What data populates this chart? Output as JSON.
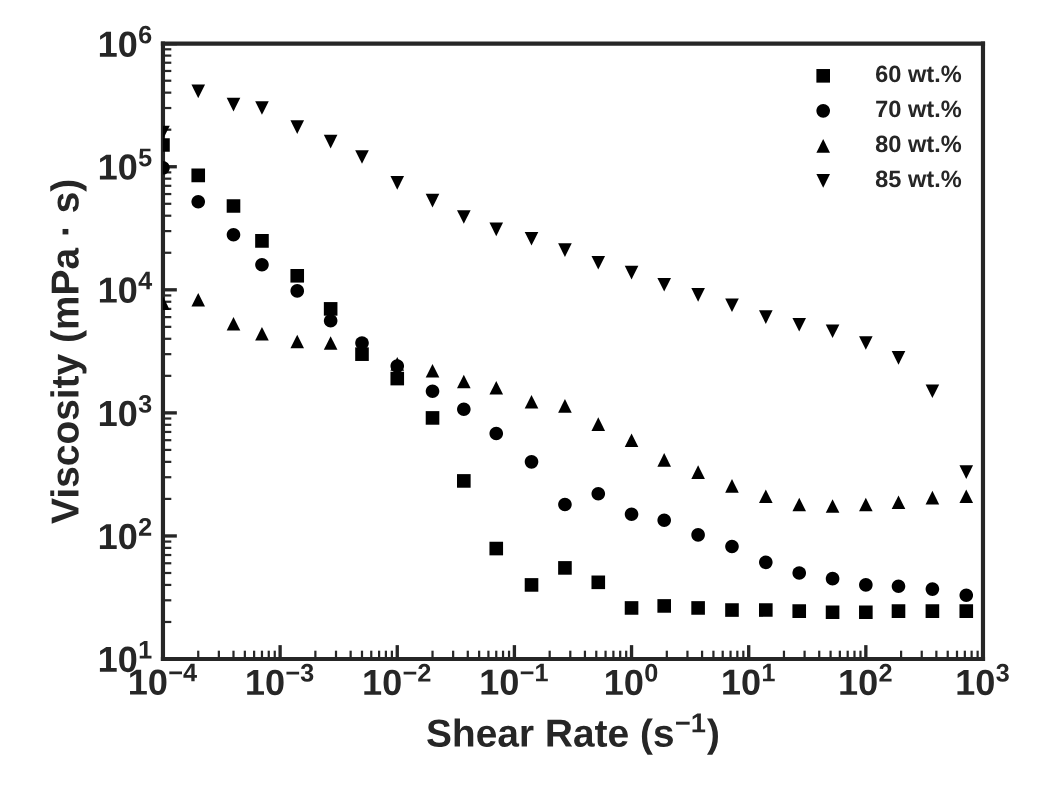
{
  "chart_data": {
    "type": "scatter",
    "xlabel": "Shear Rate (s$^{−1}$)",
    "ylabel": "Viscosity (mPa · s)",
    "x": [
      0.0001,
      0.0002,
      0.0004,
      0.0007,
      0.0014,
      0.0027,
      0.005,
      0.01,
      0.02,
      0.037,
      0.07,
      0.14,
      0.27,
      0.52,
      1,
      1.9,
      3.7,
      7.2,
      14,
      27,
      52,
      100,
      190,
      370,
      720
    ],
    "series": [
      {
        "name": "60 wt.%",
        "color": "#000000",
        "marker": "square",
        "values": [
          150000,
          85000,
          48000,
          25000,
          13000,
          7000,
          3000,
          1900,
          910,
          280,
          79,
          40,
          55,
          42,
          26,
          27,
          26,
          25,
          25,
          24.5,
          24,
          24,
          24.5,
          24.5,
          24.5
        ]
      },
      {
        "name": "70 wt.%",
        "color": "#000000",
        "marker": "circle",
        "values": [
          98000,
          52000,
          28000,
          16000,
          9800,
          5600,
          3700,
          2400,
          1500,
          1070,
          680,
          400,
          180,
          220,
          150,
          134,
          102,
          82,
          61,
          50,
          45,
          40,
          39,
          37,
          33
        ]
      },
      {
        "name": "80 wt.%",
        "color": "#000000",
        "marker": "triangle",
        "values": [
          7800,
          8300,
          5300,
          4400,
          3800,
          3700,
          null,
          2500,
          2200,
          1800,
          1600,
          1230,
          1140,
          810,
          600,
          415,
          330,
          255,
          210,
          180,
          175,
          180,
          188,
          205,
          210
        ]
      },
      {
        "name": "85 wt.%",
        "color": "#000000",
        "marker": "triangle_down",
        "values": [
          190000,
          410000,
          320000,
          300000,
          210000,
          160000,
          120000,
          74000,
          53000,
          39000,
          31000,
          26000,
          21000,
          16600,
          13800,
          11000,
          9100,
          7500,
          6000,
          5200,
          4600,
          3700,
          2800,
          1500,
          330
        ]
      }
    ],
    "log": "xy",
    "xlim": [
      0.0001,
      1000
    ],
    "xticks": [
      {
        "value": 0.0001,
        "label": "10$^{−4}$"
      },
      {
        "value": 0.001,
        "label": "10$^{−3}$"
      },
      {
        "value": 0.01,
        "label": "10$^{−2}$"
      },
      {
        "value": 0.1,
        "label": "10$^{−1}$"
      },
      {
        "value": 1,
        "label": "10$^{0}$"
      },
      {
        "value": 10,
        "label": "10$^{1}$"
      },
      {
        "value": 100,
        "label": "10$^{2}$"
      },
      {
        "value": 1000,
        "label": "10$^{3}$"
      }
    ],
    "ylim": [
      10,
      1000000
    ],
    "yticks": [
      {
        "value": 10,
        "label": "10$^{1}$"
      },
      {
        "value": 100,
        "label": "10$^{2}$"
      },
      {
        "value": 1000,
        "label": "10$^{3}$"
      },
      {
        "value": 10000,
        "label": "10$^{4}$"
      },
      {
        "value": 100000,
        "label": "10$^{5}$"
      },
      {
        "value": 1000000,
        "label": "10$^{6}$"
      }
    ],
    "grid": false,
    "legend": "top right"
  }
}
